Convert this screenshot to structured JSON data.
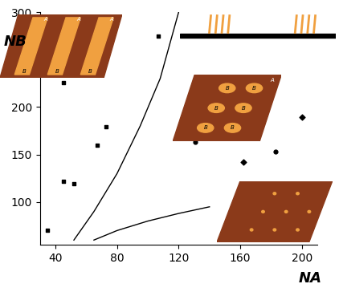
{
  "chart_data": {
    "type": "scatter",
    "x_label": "NA",
    "y_label": "NB",
    "xlim": [
      30,
      210
    ],
    "xticks": [
      40,
      80,
      120,
      160,
      200
    ],
    "ylim": [
      55,
      300
    ],
    "yticks": [
      100,
      150,
      200,
      250,
      300
    ],
    "annotations": [
      "A",
      "B"
    ],
    "series": [
      {
        "type": "scatter",
        "marker": "square",
        "color": "#000000",
        "x": [
          35,
          45,
          45,
          52,
          67,
          73,
          107
        ],
        "y": [
          70,
          122,
          226,
          119,
          160,
          179,
          275
        ]
      },
      {
        "type": "scatter",
        "marker": "circle",
        "color": "#000000",
        "x": [
          131,
          183
        ],
        "y": [
          163,
          153
        ]
      },
      {
        "type": "scatter",
        "marker": "diamond",
        "color": "#000000",
        "x": [
          162,
          200
        ],
        "y": [
          142,
          189
        ]
      },
      {
        "type": "line",
        "line_style": "solid",
        "color": "#000000",
        "x": [
          52,
          65,
          80,
          95,
          108,
          120
        ],
        "y": [
          60,
          90,
          130,
          180,
          230,
          300
        ]
      },
      {
        "type": "line",
        "line_style": "solid",
        "color": "#000000",
        "x": [
          65,
          80,
          100,
          120,
          140
        ],
        "y": [
          60,
          70,
          80,
          88,
          95
        ]
      }
    ]
  }
}
